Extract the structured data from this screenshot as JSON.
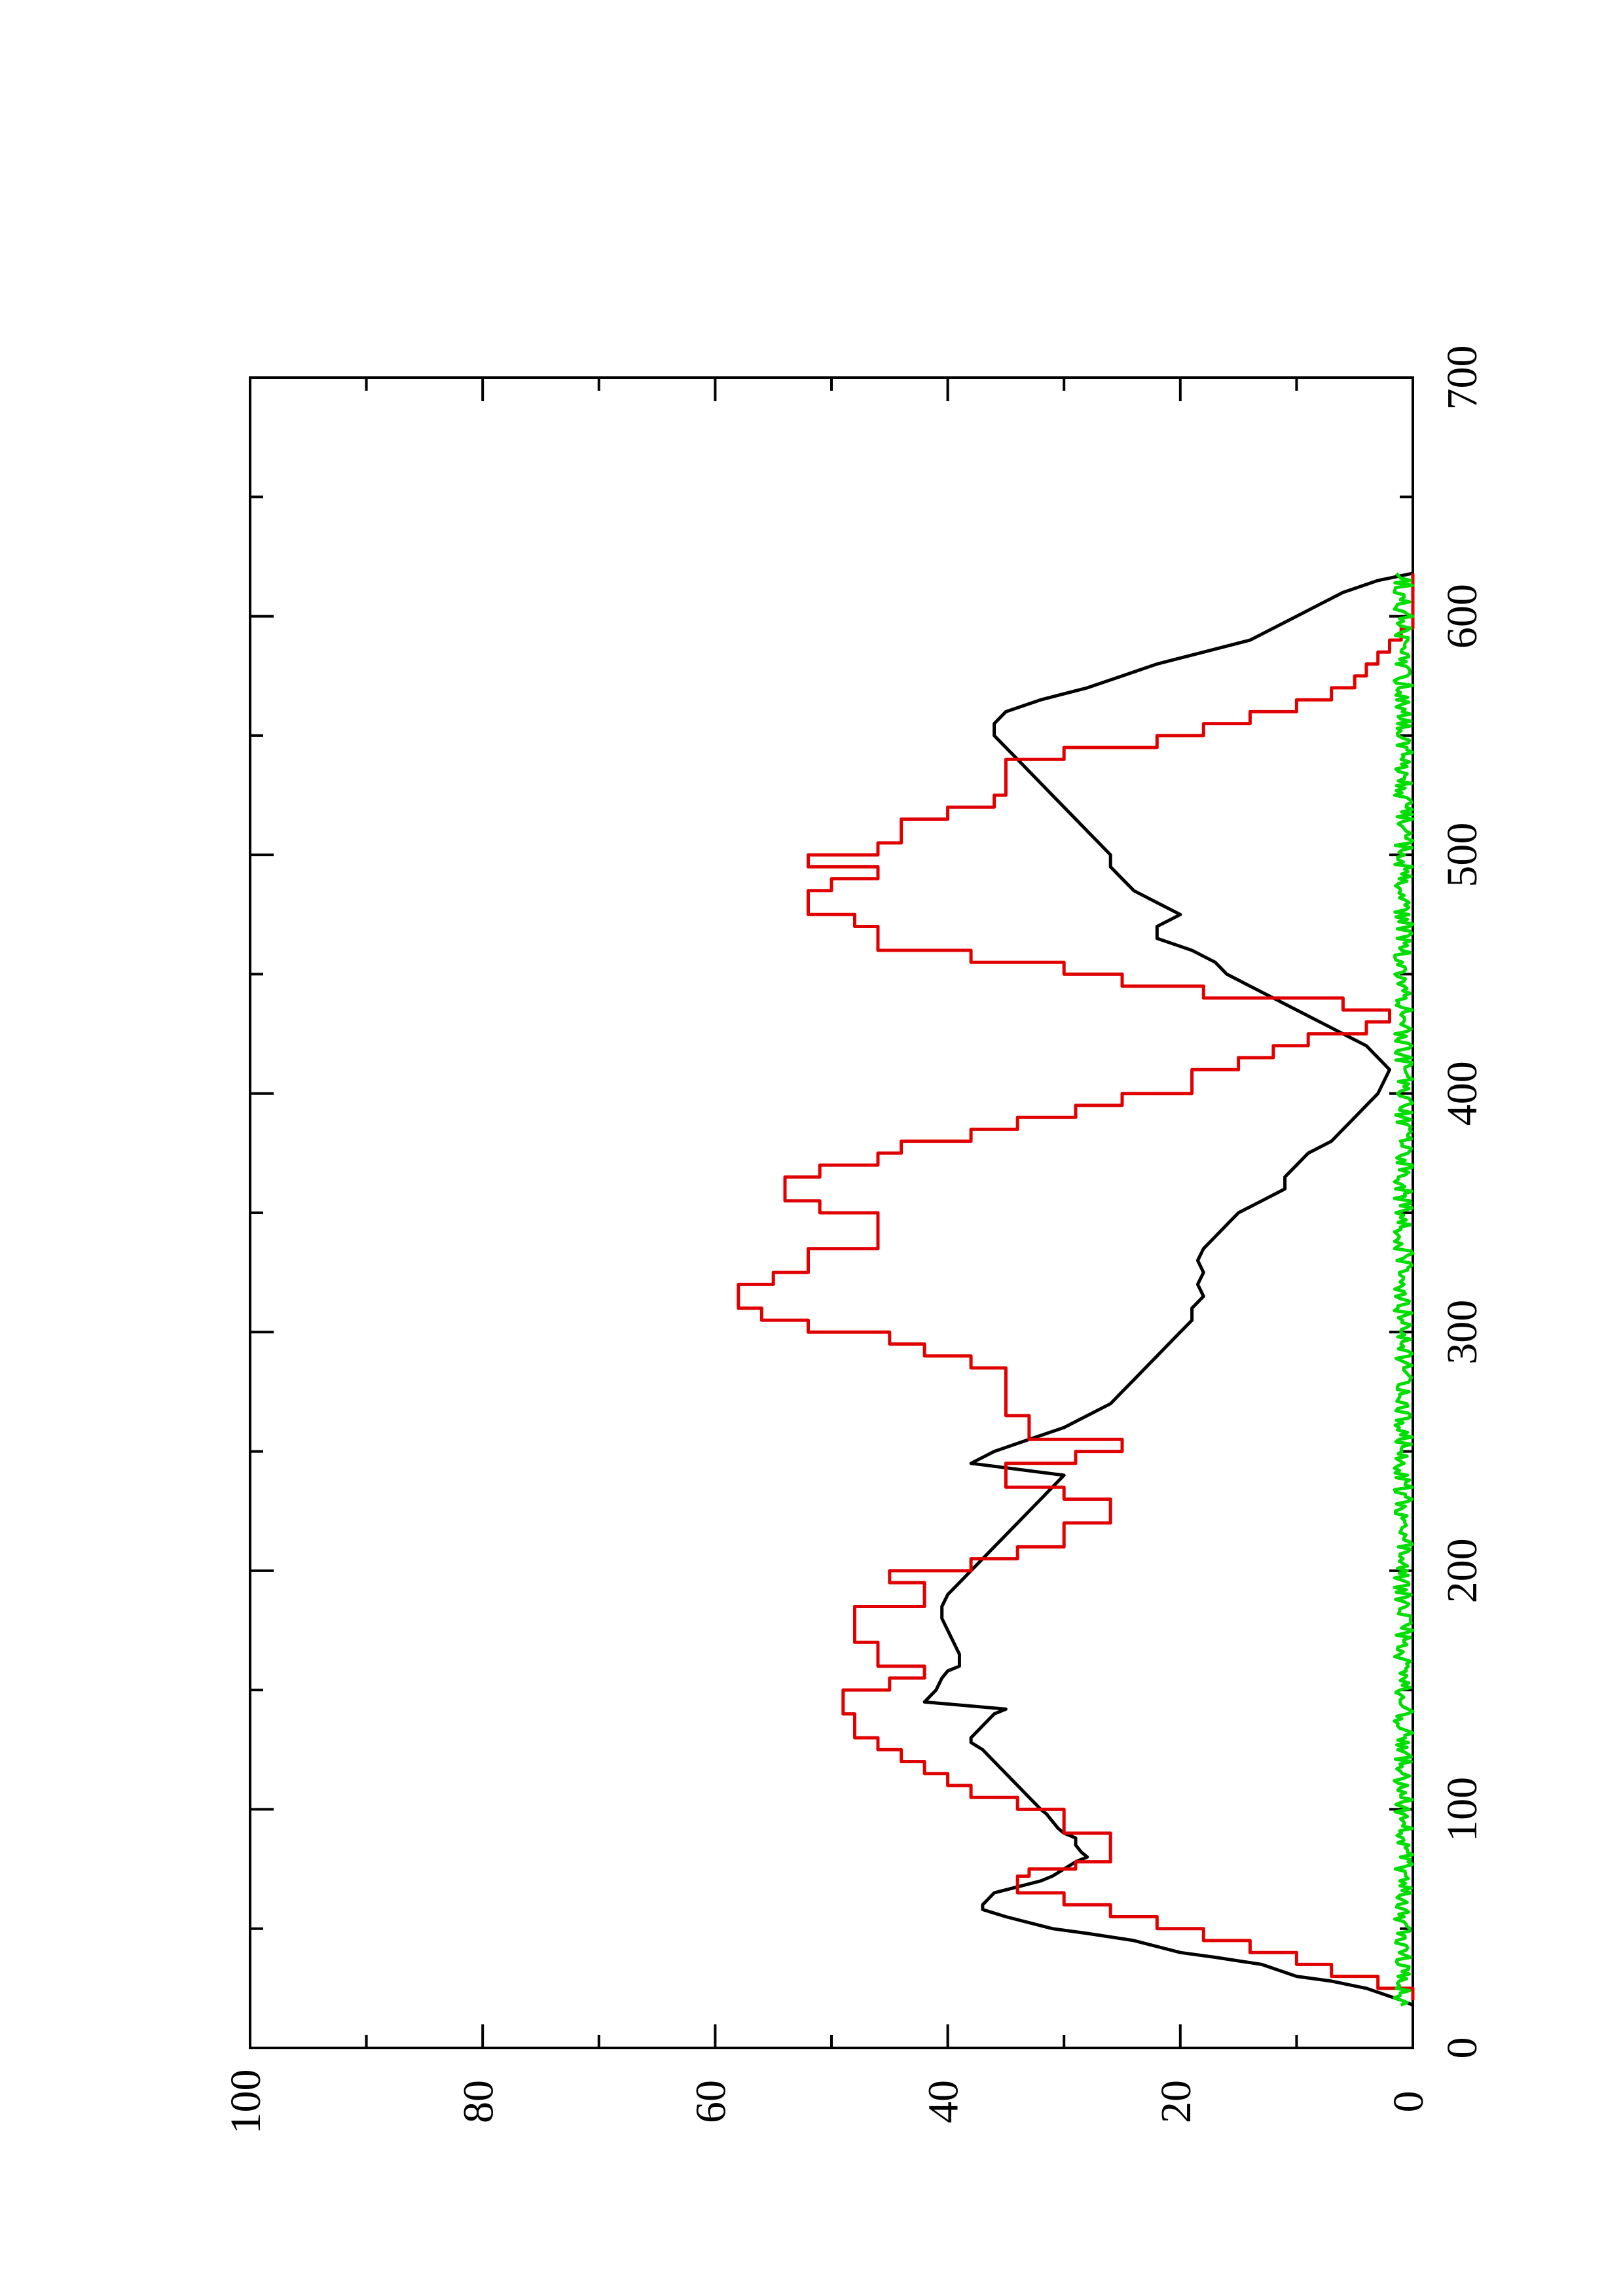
{
  "chart_data": {
    "type": "line",
    "title": "",
    "xlabel": "",
    "ylabel": "",
    "orientation": "rotated-90-ccw",
    "xlim": [
      0,
      700
    ],
    "ylim": [
      0,
      100
    ],
    "x_ticks": [
      0,
      100,
      200,
      300,
      400,
      500,
      600,
      700
    ],
    "x_tick_labels": [
      "0",
      "100",
      "200",
      "300",
      "400",
      "500",
      "600",
      "700"
    ],
    "x_minor_ticks": [
      50,
      150,
      250,
      350,
      450,
      550,
      650
    ],
    "y_ticks": [
      0,
      20,
      40,
      60,
      80,
      100
    ],
    "y_tick_labels": [
      "0",
      "20",
      "40",
      "60",
      "80",
      "100"
    ],
    "y_minor_ticks": [
      10,
      30,
      50,
      70,
      90
    ],
    "grid": false,
    "legend": "none",
    "series": [
      {
        "color": "#000000",
        "style": "line",
        "x": [
          18,
          20,
          25,
          28,
          30,
          35,
          38,
          40,
          45,
          48,
          50,
          55,
          58,
          60,
          65,
          70,
          72,
          75,
          78,
          80,
          82,
          85,
          88,
          90,
          92,
          95,
          98,
          100,
          105,
          110,
          115,
          120,
          125,
          128,
          130,
          135,
          140,
          142,
          145,
          150,
          155,
          158,
          160,
          165,
          170,
          175,
          180,
          185,
          190,
          195,
          200,
          205,
          210,
          215,
          220,
          225,
          230,
          235,
          240,
          245,
          250,
          255,
          260,
          265,
          270,
          275,
          280,
          285,
          290,
          295,
          300,
          305,
          310,
          315,
          320,
          325,
          330,
          335,
          340,
          345,
          350,
          355,
          360,
          365,
          370,
          375,
          380,
          385,
          390,
          395,
          400,
          405,
          410,
          415,
          420,
          425,
          430,
          435,
          440,
          445,
          450,
          455,
          460,
          465,
          470,
          475,
          480,
          485,
          490,
          495,
          500,
          505,
          510,
          515,
          520,
          525,
          530,
          535,
          540,
          545,
          550,
          555,
          560,
          565,
          570,
          575,
          580,
          585,
          590,
          595,
          600,
          605,
          610,
          615,
          618
        ],
        "y": [
          0,
          1,
          4,
          7,
          10,
          13,
          17,
          20,
          24,
          28,
          31,
          35,
          37,
          37,
          36,
          32,
          31,
          30,
          29,
          28,
          28.5,
          29,
          29,
          30,
          30.5,
          31,
          31.5,
          32,
          33,
          34,
          35,
          36,
          37,
          38,
          38,
          37,
          36,
          35,
          42,
          41,
          40.5,
          40,
          39,
          39,
          39.5,
          40,
          40.5,
          40.5,
          40,
          39,
          38,
          37,
          36,
          35,
          34,
          33,
          32,
          31,
          30,
          38,
          36,
          33,
          30,
          28,
          26,
          25,
          24,
          23,
          22,
          21,
          20,
          19,
          19,
          18,
          18.5,
          18,
          18.5,
          18,
          17,
          16,
          15,
          13,
          11,
          11,
          10,
          9,
          7,
          6,
          5,
          4,
          3,
          2.5,
          2,
          3,
          4,
          6,
          8,
          10,
          12,
          14,
          16,
          17,
          19,
          22,
          22,
          20,
          22,
          24,
          25,
          26,
          26,
          27,
          28,
          29,
          30,
          31,
          32,
          33,
          34,
          35,
          36,
          36,
          35,
          32,
          28,
          25,
          22,
          18,
          14,
          12,
          10,
          8,
          6,
          3,
          0
        ]
      },
      {
        "color": "#e00000",
        "style": "step",
        "x": [
          20,
          25,
          30,
          35,
          40,
          45,
          50,
          55,
          60,
          65,
          70,
          72,
          75,
          78,
          80,
          82,
          85,
          88,
          90,
          95,
          100,
          105,
          110,
          115,
          120,
          125,
          130,
          135,
          140,
          145,
          150,
          155,
          160,
          165,
          170,
          175,
          180,
          185,
          190,
          195,
          200,
          205,
          210,
          215,
          220,
          225,
          230,
          235,
          240,
          245,
          250,
          255,
          260,
          265,
          270,
          275,
          280,
          285,
          290,
          295,
          300,
          305,
          310,
          315,
          320,
          325,
          330,
          335,
          340,
          345,
          350,
          355,
          360,
          365,
          370,
          375,
          380,
          385,
          390,
          395,
          400,
          405,
          410,
          415,
          420,
          425,
          430,
          435,
          440,
          445,
          450,
          455,
          460,
          465,
          470,
          475,
          480,
          485,
          490,
          495,
          500,
          505,
          510,
          515,
          520,
          525,
          530,
          535,
          540,
          545,
          550,
          555,
          560,
          565,
          570,
          575,
          580,
          585,
          590,
          595,
          600,
          605,
          610,
          615,
          618
        ],
        "y": [
          0,
          3,
          7,
          10,
          14,
          18,
          22,
          26,
          30,
          34,
          34,
          33,
          29,
          26,
          26,
          26,
          26,
          26,
          30,
          30,
          34,
          38,
          40,
          42,
          44,
          46,
          48,
          48,
          49,
          49,
          45,
          42,
          46,
          46,
          48,
          48,
          48,
          42,
          42,
          45,
          38,
          34,
          30,
          30,
          26,
          26,
          30,
          35,
          35,
          29,
          25,
          33,
          33,
          35,
          35,
          35,
          35,
          38,
          42,
          45,
          52,
          56,
          58,
          58,
          55,
          52,
          52,
          46,
          46,
          46,
          51,
          54,
          54,
          51,
          46,
          44,
          38,
          34,
          29,
          25,
          19,
          19,
          15,
          12,
          9,
          4,
          2,
          6,
          18,
          25,
          30,
          38,
          46,
          46,
          48,
          52,
          52,
          50,
          46,
          52,
          46,
          44,
          44,
          40,
          36,
          35,
          35,
          35,
          30,
          22,
          18,
          14,
          10,
          7,
          5,
          4,
          3,
          2,
          1,
          0,
          0,
          0,
          0,
          0,
          0
        ]
      },
      {
        "color": "#00dd00",
        "style": "noise",
        "x_range": [
          18,
          618
        ],
        "amplitude": 1.6,
        "baseline": 0
      }
    ]
  }
}
